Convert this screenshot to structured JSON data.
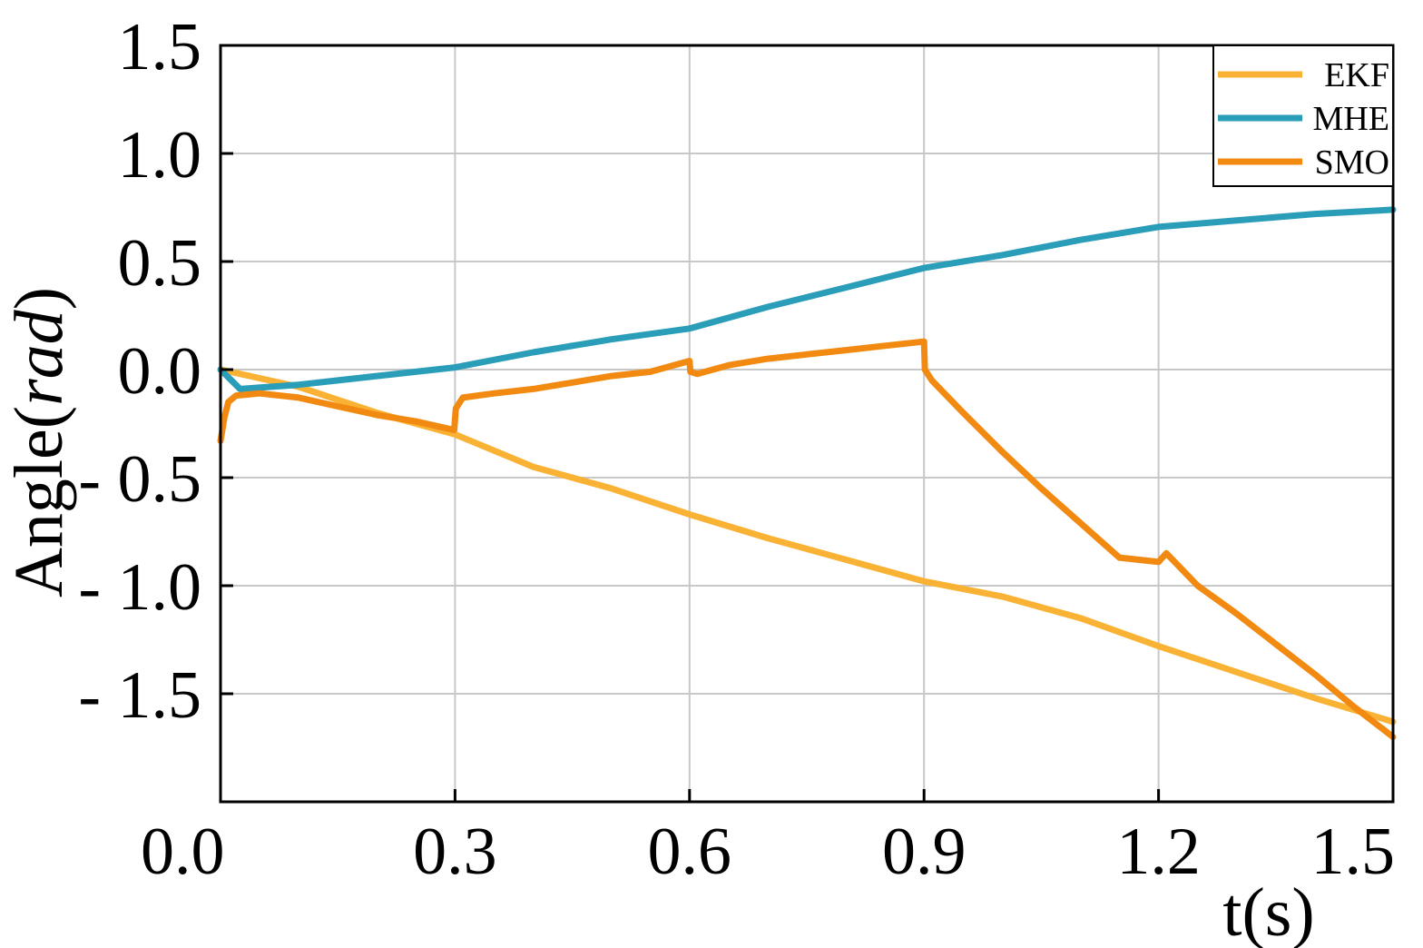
{
  "chart_data": {
    "type": "line",
    "xlabel": "t(s)",
    "ylabel_prefix": "Angle(",
    "ylabel_unit": "rad",
    "ylabel_suffix": ")",
    "xlim": [
      0.0,
      1.5
    ],
    "ylim": [
      -2.0,
      1.5
    ],
    "x_ticks": [
      0.0,
      0.3,
      0.6,
      0.9,
      1.2,
      1.5
    ],
    "x_tick_labels": [
      "0.0",
      "0.3",
      "0.6",
      "0.9",
      "1.2",
      "1.5"
    ],
    "y_ticks": [
      1.5,
      1.0,
      0.5,
      0.0,
      -0.5,
      -1.0,
      -1.5
    ],
    "y_tick_labels": [
      "1.5",
      "1.0",
      "0.5",
      "0.0",
      "- 0.5",
      "- 1.0",
      "- 1.5"
    ],
    "grid": true,
    "legend_position": "top-right",
    "series": [
      {
        "name": "EKF",
        "color": "#F9B233",
        "x": [
          0.0,
          0.1,
          0.2,
          0.3,
          0.4,
          0.5,
          0.6,
          0.7,
          0.8,
          0.9,
          1.0,
          1.1,
          1.2,
          1.3,
          1.4,
          1.5
        ],
        "y": [
          0.0,
          -0.08,
          -0.2,
          -0.3,
          -0.45,
          -0.55,
          -0.67,
          -0.78,
          -0.88,
          -0.98,
          -1.05,
          -1.15,
          -1.28,
          -1.4,
          -1.52,
          -1.63
        ]
      },
      {
        "name": "MHE",
        "color": "#2A9DB9",
        "x": [
          0.0,
          0.025,
          0.1,
          0.2,
          0.3,
          0.4,
          0.5,
          0.6,
          0.7,
          0.8,
          0.9,
          1.0,
          1.1,
          1.2,
          1.3,
          1.4,
          1.5
        ],
        "y": [
          0.0,
          -0.09,
          -0.07,
          -0.03,
          0.01,
          0.08,
          0.14,
          0.19,
          0.29,
          0.38,
          0.47,
          0.53,
          0.6,
          0.66,
          0.69,
          0.72,
          0.74
        ]
      },
      {
        "name": "SMO",
        "color": "#F28A12",
        "x": [
          0.0,
          0.005,
          0.01,
          0.02,
          0.05,
          0.1,
          0.15,
          0.2,
          0.25,
          0.299,
          0.301,
          0.31,
          0.35,
          0.4,
          0.45,
          0.5,
          0.55,
          0.6,
          0.601,
          0.61,
          0.62,
          0.65,
          0.7,
          0.75,
          0.8,
          0.85,
          0.9,
          0.901,
          0.91,
          0.95,
          1.0,
          1.05,
          1.1,
          1.15,
          1.2,
          1.21,
          1.25,
          1.3,
          1.35,
          1.4,
          1.45,
          1.5
        ],
        "y": [
          -0.33,
          -0.22,
          -0.15,
          -0.12,
          -0.11,
          -0.13,
          -0.17,
          -0.21,
          -0.24,
          -0.28,
          -0.18,
          -0.13,
          -0.11,
          -0.09,
          -0.06,
          -0.03,
          -0.01,
          0.04,
          -0.01,
          -0.02,
          -0.01,
          0.02,
          0.05,
          0.07,
          0.09,
          0.11,
          0.13,
          0.0,
          -0.05,
          -0.2,
          -0.38,
          -0.55,
          -0.71,
          -0.87,
          -0.89,
          -0.85,
          -1.0,
          -1.13,
          -1.27,
          -1.41,
          -1.56,
          -1.7
        ]
      }
    ]
  }
}
